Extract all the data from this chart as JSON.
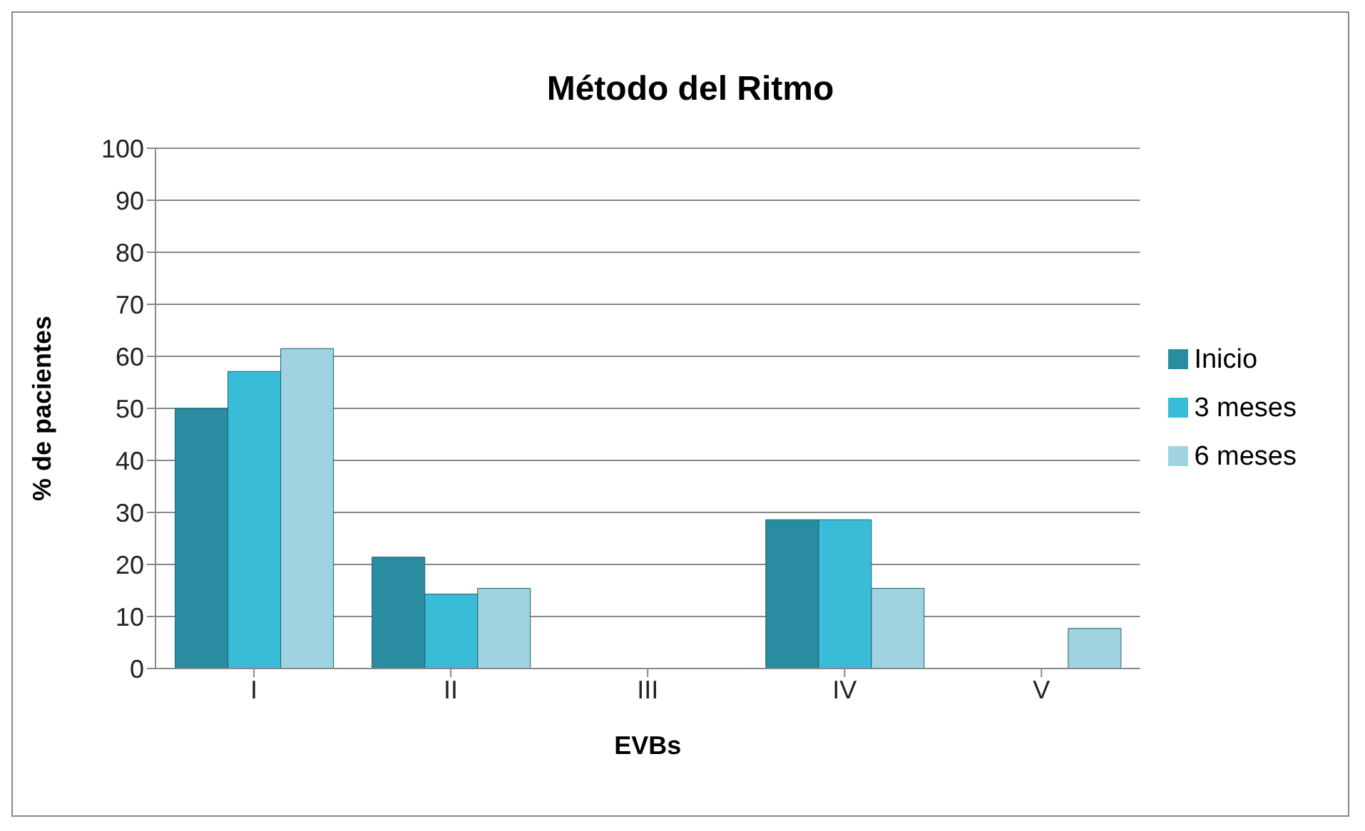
{
  "chart_data": {
    "type": "bar",
    "title": "Método del Ritmo",
    "xlabel": "EVBs",
    "ylabel": "% de pacientes",
    "categories": [
      "I",
      "II",
      "III",
      "IV",
      "V"
    ],
    "series": [
      {
        "name": "Inicio",
        "color": "#2a8ca0",
        "values": [
          50,
          21.4,
          0,
          28.6,
          0
        ]
      },
      {
        "name": "3 meses",
        "color": "#38bcd8",
        "values": [
          57.1,
          14.3,
          0,
          28.6,
          0
        ]
      },
      {
        "name": "6 meses",
        "color": "#9fd3e0",
        "values": [
          61.5,
          15.4,
          0,
          15.4,
          7.7
        ]
      }
    ],
    "ylim": [
      0,
      100
    ],
    "yticks": [
      0,
      10,
      20,
      30,
      40,
      50,
      60,
      70,
      80,
      90,
      100
    ],
    "grid": "y",
    "legend": "right"
  }
}
